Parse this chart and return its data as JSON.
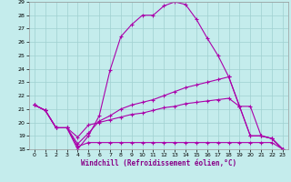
{
  "xlabel": "Windchill (Refroidissement éolien,°C)",
  "bg_color": "#c4ecec",
  "grid_color": "#a0d0d0",
  "line_color": "#aa00aa",
  "xlim": [
    -0.5,
    23.5
  ],
  "ylim": [
    18,
    29
  ],
  "xticks": [
    0,
    1,
    2,
    3,
    4,
    5,
    6,
    7,
    8,
    9,
    10,
    11,
    12,
    13,
    14,
    15,
    16,
    17,
    18,
    19,
    20,
    21,
    22,
    23
  ],
  "yticks": [
    18,
    19,
    20,
    21,
    22,
    23,
    24,
    25,
    26,
    27,
    28,
    29
  ],
  "line1_x": [
    0,
    1,
    2,
    3,
    4,
    5,
    6,
    7,
    8,
    9,
    10,
    11,
    12,
    13,
    14,
    15,
    16,
    17,
    18,
    19,
    20,
    21,
    22,
    23
  ],
  "line1_y": [
    21.3,
    20.9,
    19.6,
    19.6,
    18.0,
    19.0,
    20.5,
    23.9,
    26.4,
    27.3,
    28.0,
    28.0,
    28.7,
    29.0,
    28.8,
    27.7,
    26.3,
    25.0,
    23.4,
    21.2,
    19.0,
    19.0,
    18.8,
    18.0
  ],
  "line2_x": [
    0,
    1,
    2,
    3,
    4,
    5,
    6,
    7,
    8,
    9,
    10,
    11,
    12,
    13,
    14,
    15,
    16,
    17,
    18,
    19,
    20,
    21,
    22,
    23
  ],
  "line2_y": [
    21.3,
    20.9,
    19.6,
    19.6,
    18.4,
    19.2,
    20.1,
    20.5,
    21.0,
    21.3,
    21.5,
    21.7,
    22.0,
    22.3,
    22.6,
    22.8,
    23.0,
    23.2,
    23.4,
    21.2,
    19.0,
    19.0,
    18.8,
    18.0
  ],
  "line3_x": [
    0,
    1,
    2,
    3,
    4,
    5,
    6,
    7,
    8,
    9,
    10,
    11,
    12,
    13,
    14,
    15,
    16,
    17,
    18,
    19,
    20,
    21,
    22,
    23
  ],
  "line3_y": [
    21.3,
    20.9,
    19.6,
    19.6,
    18.9,
    19.8,
    20.0,
    20.2,
    20.4,
    20.6,
    20.7,
    20.9,
    21.1,
    21.2,
    21.4,
    21.5,
    21.6,
    21.7,
    21.8,
    21.2,
    21.2,
    19.0,
    18.8,
    18.0
  ],
  "line4_x": [
    0,
    1,
    2,
    3,
    4,
    5,
    6,
    7,
    8,
    9,
    10,
    11,
    12,
    13,
    14,
    15,
    16,
    17,
    18,
    19,
    20,
    21,
    22,
    23
  ],
  "line4_y": [
    21.3,
    20.9,
    19.6,
    19.6,
    18.2,
    18.5,
    18.5,
    18.5,
    18.5,
    18.5,
    18.5,
    18.5,
    18.5,
    18.5,
    18.5,
    18.5,
    18.5,
    18.5,
    18.5,
    18.5,
    18.5,
    18.5,
    18.5,
    18.0
  ]
}
